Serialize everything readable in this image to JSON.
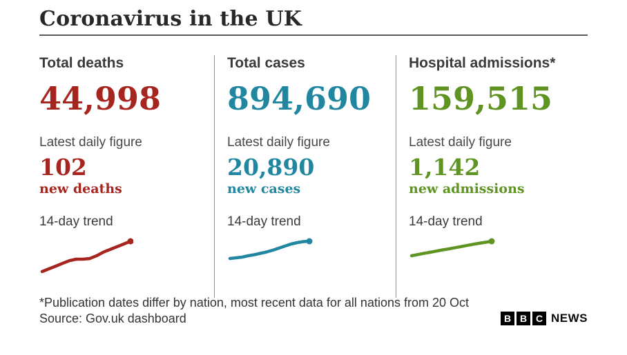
{
  "header": {
    "title": "Coronavirus in the UK"
  },
  "columns": [
    {
      "label": "Total deaths",
      "total": "44,998",
      "daily_label": "Latest daily figure",
      "daily_value": "102",
      "daily_unit": "new deaths",
      "trend_label": "14-day trend",
      "color": "#a6251e"
    },
    {
      "label": "Total cases",
      "total": "894,690",
      "daily_label": "Latest daily figure",
      "daily_value": "20,890",
      "daily_unit": "new cases",
      "trend_label": "14-day trend",
      "color": "#2187a0"
    },
    {
      "label": "Hospital admissions*",
      "total": "159,515",
      "daily_label": "Latest daily figure",
      "daily_value": "1,142",
      "daily_unit": "new admissions",
      "trend_label": "14-day trend",
      "color": "#5f9422"
    }
  ],
  "footer": {
    "footnote": "*Publication dates differ by nation, most recent data for all nations from 20 Oct",
    "source": "Source: Gov.uk dashboard",
    "logo_boxes": [
      "B",
      "B",
      "C"
    ],
    "logo_suffix": "NEWS"
  },
  "chart_data": [
    {
      "type": "line",
      "name": "Total deaths 14-day trend",
      "color": "#a6251e",
      "x": [
        1,
        2,
        3,
        4,
        5,
        6,
        7,
        8,
        9,
        10,
        11,
        12,
        13,
        14
      ],
      "values": [
        0,
        0.09,
        0.18,
        0.27,
        0.36,
        0.41,
        0.41,
        0.43,
        0.52,
        0.64,
        0.73,
        0.82,
        0.91,
        1.0
      ],
      "values_scale": "relative 0-1 (unlabeled sparkline, rising trend)",
      "spark_extent": {
        "run": 128,
        "rise": 44
      },
      "end_marker": "dot"
    },
    {
      "type": "line",
      "name": "Total cases 14-day trend",
      "color": "#2187a0",
      "x": [
        1,
        2,
        3,
        4,
        5,
        6,
        7,
        8,
        9,
        10,
        11,
        12,
        13,
        14
      ],
      "values": [
        0,
        0.04,
        0.08,
        0.16,
        0.22,
        0.3,
        0.38,
        0.48,
        0.6,
        0.72,
        0.84,
        0.92,
        0.98,
        1.0
      ],
      "values_scale": "relative 0-1 (unlabeled sparkline, rising trend)",
      "spark_extent": {
        "run": 115,
        "rise": 25
      },
      "end_marker": "dot"
    },
    {
      "type": "line",
      "name": "Hospital admissions 14-day trend",
      "color": "#5f9422",
      "x": [
        1,
        2,
        3,
        4,
        5,
        6,
        7,
        8,
        9,
        10,
        11,
        12,
        13,
        14
      ],
      "values": [
        0,
        0.08,
        0.16,
        0.24,
        0.32,
        0.4,
        0.47,
        0.55,
        0.63,
        0.71,
        0.79,
        0.86,
        0.93,
        1.0
      ],
      "values_scale": "relative 0-1 (unlabeled sparkline, near-linear rising trend)",
      "spark_extent": {
        "run": 116,
        "rise": 21
      },
      "end_marker": "dot"
    }
  ]
}
